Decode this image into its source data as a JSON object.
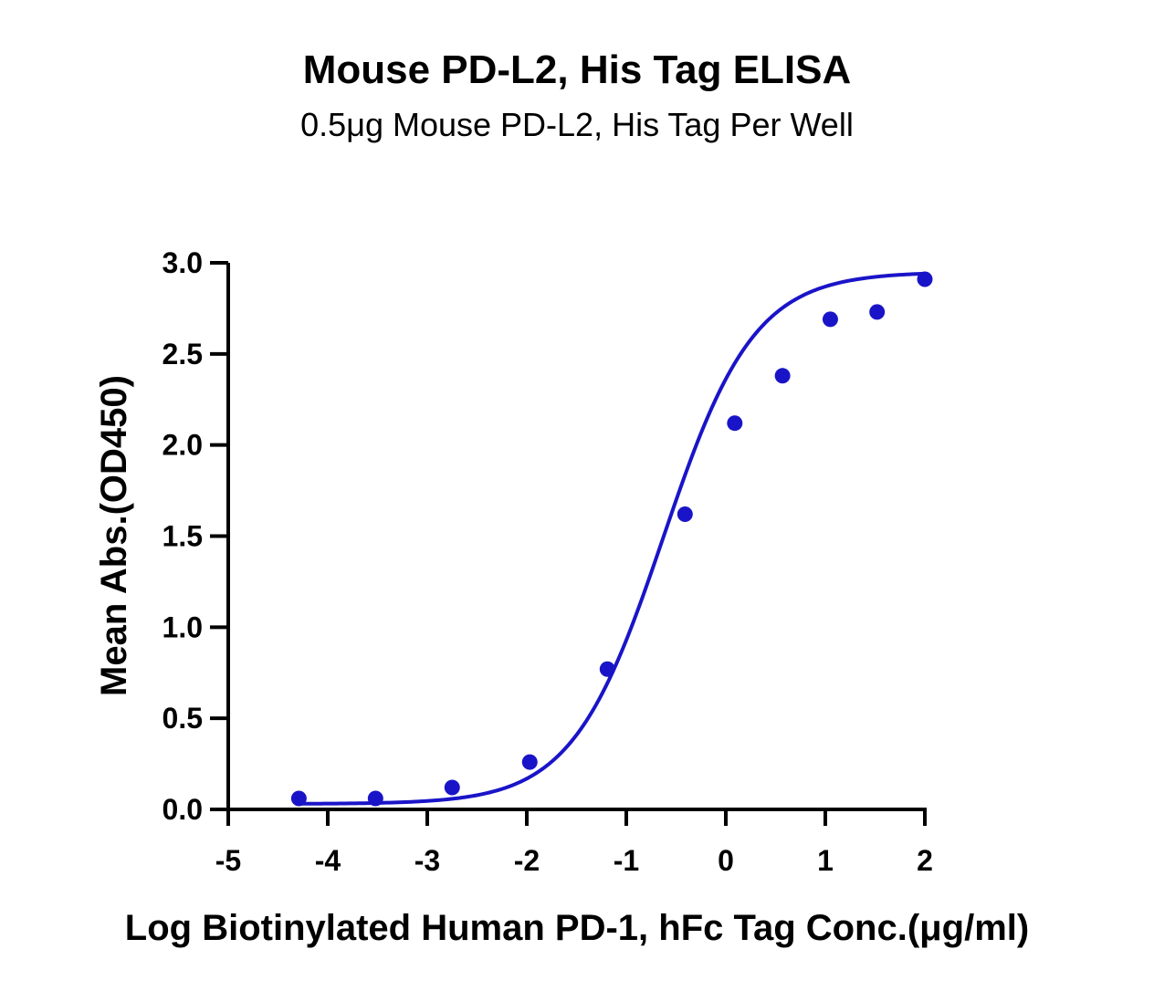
{
  "colors": {
    "series": "#1a14c8",
    "axis": "#000000"
  },
  "chart_data": {
    "type": "scatter",
    "title": "Mouse PD-L2, His Tag ELISA",
    "subtitle": "0.5μg Mouse PD-L2, His Tag Per Well",
    "xlabel": "Log Biotinylated Human PD-1, hFc Tag Conc.(μg/ml)",
    "ylabel": "Mean Abs.(OD450)",
    "xlim": [
      -5,
      2
    ],
    "ylim": [
      0,
      3.0
    ],
    "xticks": [
      -5,
      -4,
      -3,
      -2,
      -1,
      0,
      1,
      2
    ],
    "xtick_labels": [
      "-5",
      "-4",
      "-3",
      "-2",
      "-1",
      "0",
      "1",
      "2"
    ],
    "yticks": [
      0,
      0.5,
      1.0,
      1.5,
      2.0,
      2.5,
      3.0
    ],
    "ytick_labels": [
      "0.0",
      "0.5",
      "1.0",
      "1.5",
      "2.0",
      "2.5",
      "3.0"
    ],
    "grid": false,
    "series": [
      {
        "x": [
          -4.29,
          -3.52,
          -2.75,
          -1.97,
          -1.19,
          -0.41,
          0.09,
          0.57,
          1.05,
          1.52,
          2.0
        ],
        "y": [
          0.06,
          0.06,
          0.12,
          0.26,
          0.77,
          1.62,
          2.12,
          2.38,
          2.69,
          2.73,
          2.91
        ],
        "fit": {
          "model": "4PL sigmoid",
          "x_range": [
            -4.29,
            2.0
          ],
          "bottom": 0.03,
          "top": 2.95,
          "logEC50": -0.63,
          "hill": 0.95
        }
      }
    ]
  }
}
